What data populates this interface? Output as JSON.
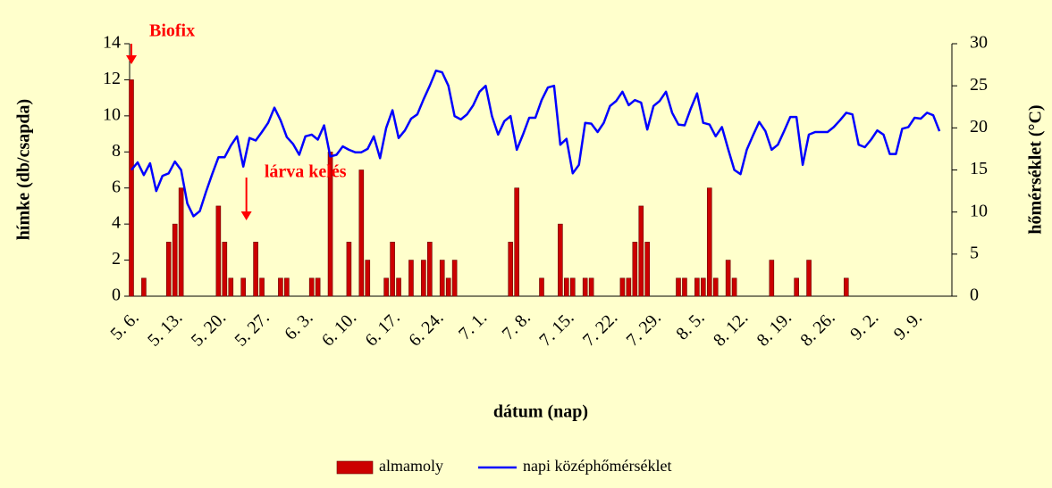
{
  "chart_data": {
    "type": "bar-line",
    "y_label": "hímke (db/csapda)",
    "y2_label": "hőmérséklet (°C)",
    "x_label": "dátum (nap)",
    "categories": [
      "5. 6.",
      null,
      null,
      null,
      null,
      null,
      null,
      "5. 13.",
      null,
      null,
      null,
      null,
      null,
      null,
      "5. 20.",
      null,
      null,
      null,
      null,
      null,
      null,
      "5. 27.",
      null,
      null,
      null,
      null,
      null,
      null,
      "6. 3.",
      null,
      null,
      null,
      null,
      null,
      null,
      "6. 10.",
      null,
      null,
      null,
      null,
      null,
      null,
      "6. 17.",
      null,
      null,
      null,
      null,
      null,
      null,
      "6. 24.",
      null,
      null,
      null,
      null,
      null,
      null,
      "7. 1.",
      null,
      null,
      null,
      null,
      null,
      null,
      "7. 8.",
      null,
      null,
      null,
      null,
      null,
      null,
      "7. 15.",
      null,
      null,
      null,
      null,
      null,
      null,
      "7. 22.",
      null,
      null,
      null,
      null,
      null,
      null,
      "7. 29.",
      null,
      null,
      null,
      null,
      null,
      null,
      "8. 5.",
      null,
      null,
      null,
      null,
      null,
      null,
      "8. 12.",
      null,
      null,
      null,
      null,
      null,
      null,
      "8. 19.",
      null,
      null,
      null,
      null,
      null,
      null,
      "8. 26.",
      null,
      null,
      null,
      null,
      null,
      null,
      "9. 2.",
      null,
      null,
      null,
      null,
      null,
      null,
      "9. 9.",
      null,
      null,
      null,
      null
    ],
    "series": [
      {
        "name": "almamoly",
        "type": "bar",
        "color": "#cc0000",
        "values": [
          12,
          0,
          1,
          0,
          0,
          0,
          3,
          4,
          6,
          0,
          0,
          0,
          0,
          0,
          5,
          3,
          1,
          0,
          1,
          0,
          3,
          1,
          0,
          0,
          1,
          1,
          0,
          0,
          0,
          1,
          1,
          0,
          8,
          0,
          0,
          3,
          0,
          7,
          2,
          0,
          0,
          1,
          3,
          1,
          0,
          2,
          0,
          2,
          3,
          0,
          2,
          1,
          2,
          0,
          0,
          0,
          0,
          0,
          0,
          0,
          0,
          3,
          6,
          0,
          0,
          0,
          1,
          0,
          0,
          4,
          1,
          1,
          0,
          1,
          1,
          0,
          0,
          0,
          0,
          1,
          1,
          3,
          5,
          3,
          0,
          0,
          0,
          0,
          1,
          1,
          0,
          1,
          1,
          6,
          1,
          0,
          2,
          1,
          0,
          0,
          0,
          0,
          0,
          2,
          0,
          0,
          0,
          1,
          0,
          2,
          0,
          0,
          0,
          0,
          0,
          1,
          0,
          0,
          0,
          0,
          0,
          0,
          0,
          0,
          0,
          0,
          0,
          0,
          0,
          0,
          0
        ]
      },
      {
        "name": "napi középhőmérséklet",
        "type": "line",
        "axis": "y2",
        "color": "#0000ff",
        "values": [
          15.0,
          15.9,
          14.4,
          15.8,
          12.5,
          14.3,
          14.6,
          16.0,
          15.0,
          11.0,
          9.5,
          10.1,
          12.4,
          14.5,
          16.5,
          16.5,
          17.9,
          19.0,
          15.4,
          18.8,
          18.5,
          19.5,
          20.6,
          22.4,
          20.9,
          18.9,
          18.1,
          16.8,
          19.0,
          19.2,
          18.6,
          20.3,
          16.6,
          16.8,
          17.8,
          17.4,
          17.1,
          17.1,
          17.5,
          19.0,
          16.4,
          20.0,
          22.1,
          18.8,
          19.7,
          21.1,
          21.6,
          23.4,
          25.0,
          26.8,
          26.6,
          25.0,
          21.4,
          21.0,
          21.6,
          22.7,
          24.3,
          25.0,
          21.4,
          19.2,
          20.8,
          21.4,
          17.4,
          19.2,
          21.2,
          21.2,
          23.3,
          24.8,
          25.0,
          18.0,
          18.7,
          14.6,
          15.6,
          20.6,
          20.5,
          19.5,
          20.6,
          22.6,
          23.2,
          24.3,
          22.7,
          23.3,
          23.0,
          19.8,
          22.6,
          23.2,
          24.3,
          21.8,
          20.4,
          20.3,
          22.3,
          24.1,
          20.6,
          20.4,
          19.0,
          20.1,
          17.5,
          15.0,
          14.5,
          17.4,
          19.1,
          20.7,
          19.6,
          17.4,
          18.0,
          19.6,
          21.3,
          21.3,
          15.6,
          19.2,
          19.5,
          19.5,
          19.5,
          20.1,
          20.9,
          21.8,
          21.6,
          18.0,
          17.7,
          18.6,
          19.7,
          19.2,
          16.9,
          16.9,
          19.9,
          20.1,
          21.2,
          21.1,
          21.8,
          21.5,
          19.6
        ]
      }
    ],
    "ylim": [
      0,
      14
    ],
    "yticks": [
      0,
      2,
      4,
      6,
      8,
      10,
      12,
      14
    ],
    "y2lim": [
      0,
      30
    ],
    "y2ticks": [
      0,
      5,
      10,
      15,
      20,
      25,
      30
    ],
    "annotations": [
      {
        "text": "Biofix",
        "index": 0
      },
      {
        "text": "lárva kelés",
        "index": 18.5
      }
    ],
    "legend": "bottom",
    "grid": false
  }
}
